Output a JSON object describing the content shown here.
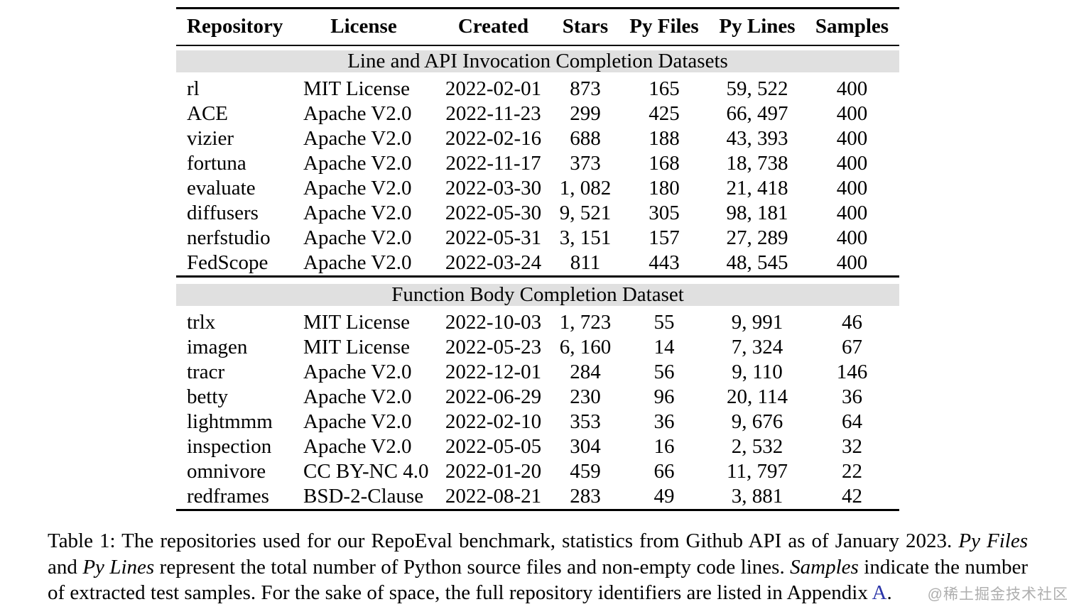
{
  "table": {
    "columns": [
      {
        "label": "Repository",
        "align": "left"
      },
      {
        "label": "License",
        "align": "left"
      },
      {
        "label": "Created",
        "align": "center"
      },
      {
        "label": "Stars",
        "align": "center"
      },
      {
        "label": "Py Files",
        "align": "center"
      },
      {
        "label": "Py Lines",
        "align": "center"
      },
      {
        "label": "Samples",
        "align": "center"
      }
    ],
    "sections": [
      {
        "title": "Line and API Invocation Completion Datasets",
        "rows": [
          [
            "rl",
            "MIT License",
            "2022-02-01",
            "873",
            "165",
            "59, 522",
            "400"
          ],
          [
            "ACE",
            "Apache V2.0",
            "2022-11-23",
            "299",
            "425",
            "66, 497",
            "400"
          ],
          [
            "vizier",
            "Apache V2.0",
            "2022-02-16",
            "688",
            "188",
            "43, 393",
            "400"
          ],
          [
            "fortuna",
            "Apache V2.0",
            "2022-11-17",
            "373",
            "168",
            "18, 738",
            "400"
          ],
          [
            "evaluate",
            "Apache V2.0",
            "2022-03-30",
            "1, 082",
            "180",
            "21, 418",
            "400"
          ],
          [
            "diffusers",
            "Apache V2.0",
            "2022-05-30",
            "9, 521",
            "305",
            "98, 181",
            "400"
          ],
          [
            "nerfstudio",
            "Apache V2.0",
            "2022-05-31",
            "3, 151",
            "157",
            "27, 289",
            "400"
          ],
          [
            "FedScope",
            "Apache V2.0",
            "2022-03-24",
            "811",
            "443",
            "48, 545",
            "400"
          ]
        ]
      },
      {
        "title": "Function Body Completion Dataset",
        "rows": [
          [
            "trlx",
            "MIT License",
            "2022-10-03",
            "1, 723",
            "55",
            "9, 991",
            "46"
          ],
          [
            "imagen",
            "MIT License",
            "2022-05-23",
            "6, 160",
            "14",
            "7, 324",
            "67"
          ],
          [
            "tracr",
            "Apache V2.0",
            "2022-12-01",
            "284",
            "56",
            "9, 110",
            "146"
          ],
          [
            "betty",
            "Apache V2.0",
            "2022-06-29",
            "230",
            "96",
            "20, 114",
            "36"
          ],
          [
            "lightmmm",
            "Apache V2.0",
            "2022-02-10",
            "353",
            "36",
            "9, 676",
            "64"
          ],
          [
            "inspection",
            "Apache V2.0",
            "2022-05-05",
            "304",
            "16",
            "2, 532",
            "32"
          ],
          [
            "omnivore",
            "CC BY-NC 4.0",
            "2022-01-20",
            "459",
            "66",
            "11, 797",
            "22"
          ],
          [
            "redframes",
            "BSD-2-Clause",
            "2022-08-21",
            "283",
            "49",
            "3, 881",
            "42"
          ]
        ]
      }
    ]
  },
  "caption": {
    "segments": [
      {
        "text": "Table 1: The repositories used for our RepoEval benchmark, statistics from Github API as of January 2023. ",
        "italic": false
      },
      {
        "text": "Py Files",
        "italic": true
      },
      {
        "text": " and ",
        "italic": false
      },
      {
        "text": "Py Lines",
        "italic": true
      },
      {
        "text": " represent the total number of Python source files and non-empty code lines. ",
        "italic": false
      },
      {
        "text": "Samples",
        "italic": true
      },
      {
        "text": " indicate the number of extracted test samples. For the sake of space, the full repository identifiers are listed in Appendix ",
        "italic": false
      },
      {
        "text": "A",
        "italic": false,
        "link": true
      },
      {
        "text": ".",
        "italic": false
      }
    ]
  },
  "watermark": {
    "text": "@稀土掘金技术社区"
  },
  "colors": {
    "section_band": "#e0e0e0",
    "link": "#2b35a8",
    "text": "#000000",
    "watermark": "#9a9a9a"
  }
}
